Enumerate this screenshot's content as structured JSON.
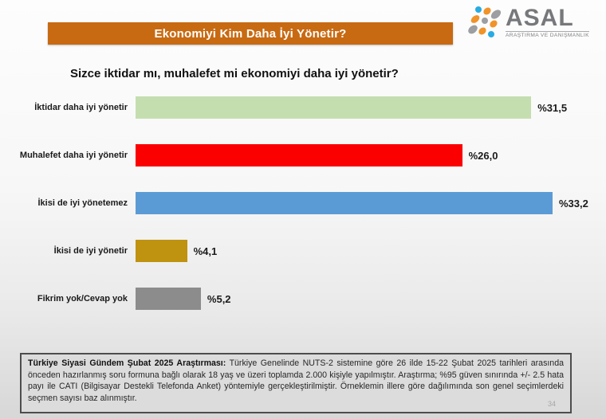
{
  "header": {
    "title": "Ekonomiyi Kim Daha İyi Yönetir?",
    "bar_color": "#c86a12"
  },
  "logo": {
    "name": "ASAL",
    "subtitle": "ARAŞTIRMA VE DANIŞMANLIK",
    "colors": {
      "orange": "#f0932a",
      "gray": "#9c9ea1",
      "blue": "#29abe2",
      "text": "#77787b"
    }
  },
  "question": "Sizce iktidar mı, muhalefet mi ekonomiyi daha iyi yönetir?",
  "chart_data": {
    "type": "bar",
    "orientation": "horizontal",
    "title": "Ekonomiyi Kim Daha İyi Yönetir?",
    "categories": [
      "İktidar daha iyi yönetir",
      "Muhalefet daha iyi yönetir",
      "İkisi de iyi yönetemez",
      "İkisi de iyi yönetir",
      "Fikrim yok/Cevap yok"
    ],
    "values": [
      31.5,
      26.0,
      33.2,
      4.1,
      5.2
    ],
    "value_labels": [
      "%31,5",
      "%26,0",
      "%33,2",
      "%4,1",
      "%5,2"
    ],
    "bar_colors": [
      "#c5deb0",
      "#fb0000",
      "#5b9bd5",
      "#bf9210",
      "#8c8c8c"
    ],
    "xlabel": "",
    "ylabel": "",
    "xlim": [
      0,
      35
    ],
    "grid": false,
    "legend": false
  },
  "footnote": {
    "bold_lead": "Türkiye Siyasi Gündem Şubat 2025 Araştırması:",
    "text": " Türkiye Genelinde NUTS-2 sistemine göre 26 ilde 15-22 Şubat 2025 tarihleri arasında önceden hazırlanmış soru formuna bağlı olarak 18 yaş ve üzeri toplamda 2.000 kişiyle yapılmıştır. Araştırma; %95 güven sınırında +/- 2.5 hata payı ile CATI (Bilgisayar Destekli Telefonda Anket) yöntemiyle gerçekleştirilmiştir. Örneklemin illere göre dağılımında son genel seçimlerdeki seçmen sayısı baz alınmıştır.",
    "page_number": "34"
  }
}
